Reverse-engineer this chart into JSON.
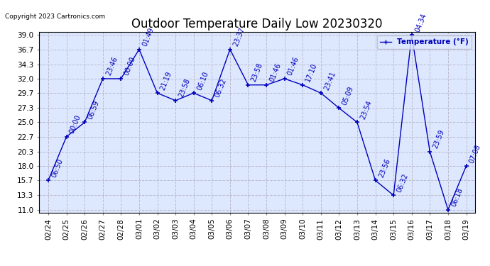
{
  "title": "Outdoor Temperature Daily Low 20230320",
  "copyright": "Copyright 2023 Cartronics.com",
  "legend_label": "Temperature (°F)",
  "background_color": "#ffffff",
  "plot_bg_color": "#dde8ff",
  "line_color": "#0000bb",
  "marker_color": "#0000bb",
  "text_color": "#0000bb",
  "x_labels": [
    "02/24",
    "02/25",
    "02/26",
    "02/27",
    "02/28",
    "03/01",
    "03/02",
    "03/03",
    "03/04",
    "03/05",
    "03/06",
    "03/07",
    "03/08",
    "03/09",
    "03/10",
    "03/11",
    "03/12",
    "03/13",
    "03/14",
    "03/15",
    "03/16",
    "03/17",
    "03/18",
    "03/19"
  ],
  "y_values": [
    15.7,
    22.7,
    25.0,
    32.0,
    32.0,
    36.7,
    29.7,
    28.5,
    29.7,
    28.5,
    36.7,
    31.0,
    31.0,
    32.0,
    31.0,
    29.7,
    27.3,
    25.0,
    15.7,
    13.3,
    39.0,
    20.3,
    11.0,
    18.0
  ],
  "annotations": [
    "06:50",
    "00:00",
    "06:59",
    "23:46",
    "00:00",
    "01:49",
    "21:19",
    "23:58",
    "06:10",
    "06:32",
    "23:37",
    "23:58",
    "01:46",
    "01:46",
    "17:10",
    "23:41",
    "05:09",
    "23:54",
    "23:56",
    "06:32",
    "04:34",
    "23:59",
    "06:18",
    "07:08"
  ],
  "ylim": [
    10.5,
    39.5
  ],
  "yticks": [
    11.0,
    13.3,
    15.7,
    18.0,
    20.3,
    22.7,
    25.0,
    27.3,
    29.7,
    32.0,
    34.3,
    36.7,
    39.0
  ],
  "grid_color": "#bbbbcc",
  "title_fontsize": 12,
  "tick_fontsize": 7.5,
  "annot_fontsize": 7,
  "border_color": "#000000"
}
